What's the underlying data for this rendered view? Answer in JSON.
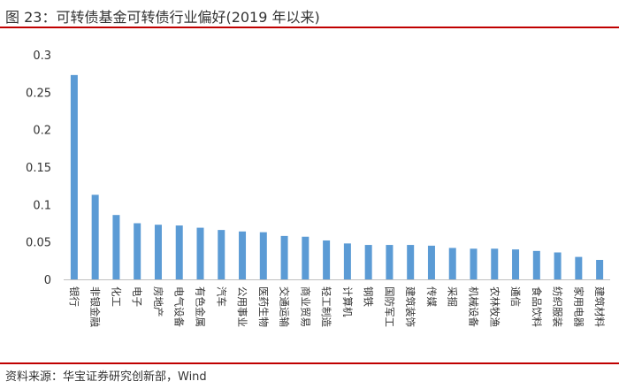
{
  "title": "图 23：可转债基金可转债行业偏好(2019 年以来)",
  "source": "资料来源：华宝证券研究创新部，Wind",
  "colors": {
    "bar": "#5b9bd5",
    "rule": "#c00000",
    "axis": "#bfbfbf"
  },
  "chart_data": {
    "type": "bar",
    "categories": [
      "银行",
      "非银金融",
      "化工",
      "电子",
      "房地产",
      "电气设备",
      "有色金属",
      "汽车",
      "公用事业",
      "医药生物",
      "交通运输",
      "商业贸易",
      "轻工制造",
      "计算机",
      "钢铁",
      "国防军工",
      "建筑装饰",
      "传媒",
      "采掘",
      "机械设备",
      "农林牧渔",
      "通信",
      "食品饮料",
      "纺织服装",
      "家用电器",
      "建筑材料"
    ],
    "values": [
      0.273,
      0.113,
      0.086,
      0.075,
      0.073,
      0.072,
      0.069,
      0.066,
      0.064,
      0.063,
      0.058,
      0.057,
      0.052,
      0.048,
      0.046,
      0.046,
      0.046,
      0.045,
      0.042,
      0.041,
      0.041,
      0.04,
      0.038,
      0.036,
      0.03,
      0.026
    ],
    "y_ticks": [
      "0",
      "0.05",
      "0.1",
      "0.15",
      "0.2",
      "0.25",
      "0.3"
    ],
    "ylim": [
      0,
      0.3
    ],
    "grid": false,
    "legend": "none"
  }
}
